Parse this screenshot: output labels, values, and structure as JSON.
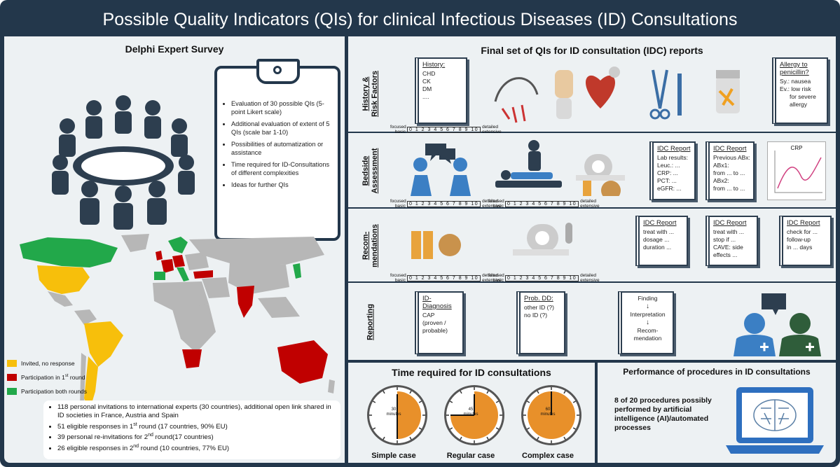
{
  "title": "Possible Quality Indicators (QIs) for clinical Infectious Diseases (ID) Consultations",
  "delphi": {
    "heading": "Delphi Expert Survey",
    "bullets": [
      "Evaluation of 30 possible QIs (5-point Likert scale)",
      "Additional evaluation of extent of 5 QIs (scale bar 1-10)",
      "Possibilities of automatization or assistance",
      "Time required for ID-Consultations of different complexities",
      "Ideas for further QIs"
    ],
    "legend": {
      "invited": "Invited, no response",
      "round1_prefix": "Participation in 1",
      "round1_sup": "st",
      "round1_suffix": " round",
      "both": "Participation both rounds"
    },
    "stats": {
      "s1": "118 personal invitations to international experts (30 countries), additional open link shared in ID societies in France, Austria and Spain",
      "s2_a": "51 eligible responses in 1",
      "s2_sup": "st",
      "s2_b": " round (17 countries, 90% EU)",
      "s3_a": "39 personal re-invitations for 2",
      "s3_sup": "nd",
      "s3_b": " round(17 countries)",
      "s4_a": "26 eligible responses in 2",
      "s4_sup": "nd",
      "s4_b": " round (10 countries, 77% EU)"
    },
    "colors": {
      "invited": "#f7bf0b",
      "round1": "#c00000",
      "both": "#22a84a",
      "none": "#b7b7b7"
    }
  },
  "final": {
    "heading": "Final set of QIs for ID consultation (IDC) reports",
    "rows": {
      "history": "History &\nRisk Factors",
      "bedside": "Bedside\nAssessment",
      "recom": "Recom-\nmendations",
      "reporting": "Reporting"
    },
    "scale": {
      "left": "focused\nbasic",
      "nums": "0 1 2 3 4 5 6 7 8 9 10",
      "right": "detailed\nextensive"
    },
    "history_note": {
      "head": "History:",
      "lines": [
        "CHD",
        "CK",
        "DM",
        "...."
      ]
    },
    "allergy_note": {
      "head": "Allergy to penicillin?",
      "lines": [
        "Sy.: nausea",
        "Ev.: low risk",
        "for severe",
        "allergy"
      ]
    },
    "idc_lab": {
      "head": "IDC Report",
      "lines": [
        "Lab results:",
        "Leuc.: ...",
        "CRP: ...",
        "PCT: ...",
        "eGFR: ..."
      ]
    },
    "idc_abx": {
      "head": "IDC Report",
      "lines": [
        "Previous ABx:",
        "ABx1:",
        "from ... to ...",
        "ABx2:",
        "from ... to ..."
      ]
    },
    "crp_label": "CRP",
    "idc_r1": {
      "head": "IDC Report",
      "lines": [
        "treat with ...",
        "dosage ...",
        "duration ..."
      ]
    },
    "idc_r2": {
      "head": "IDC Report",
      "lines": [
        "treat with ...",
        "stop if ...",
        "CAVE: side",
        "effects ..."
      ]
    },
    "idc_r3": {
      "head": "IDC Report",
      "lines": [
        "check for ...",
        "follow-up",
        "in ... days"
      ]
    },
    "diagnosis": {
      "head": "ID-Diagnosis",
      "lines": [
        "CAP",
        "(proven /",
        "probable)"
      ]
    },
    "probdd": {
      "head": "Prob. DD:",
      "lines": [
        "other ID (?)",
        "no ID (?)"
      ]
    },
    "flow": {
      "a": "Finding",
      "b": "Interpretation",
      "c": "Recom-\nmendation"
    }
  },
  "time": {
    "heading": "Time required for ID consultations",
    "cases": [
      {
        "label": "Simple case",
        "inner": "30\nminutes",
        "minutes": 30
      },
      {
        "label": "Regular case",
        "inner": "45\nminutes",
        "minutes": 45
      },
      {
        "label": "Complex case",
        "inner": "60\nminutes",
        "minutes": 60
      }
    ]
  },
  "perf": {
    "heading": "Performance of procedures in ID consultations",
    "text": "8 of 20 procedures possibly performed by artificial intelligence (AI)/automated processes"
  }
}
